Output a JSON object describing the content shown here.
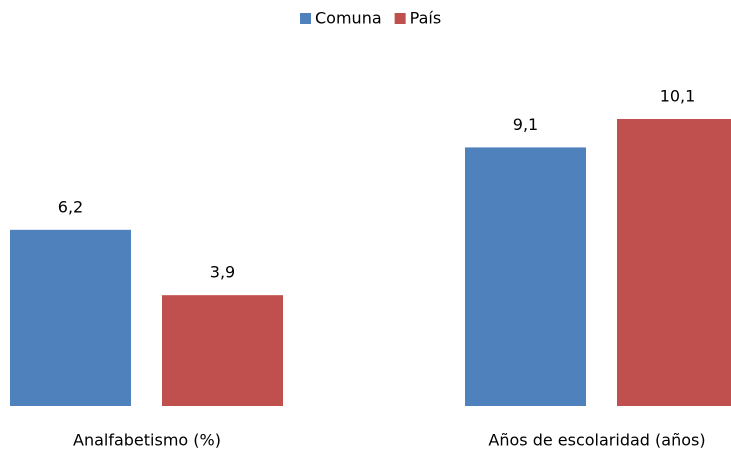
{
  "chart_data": {
    "type": "bar",
    "categories": [
      "Analfabetismo (%)",
      "Años de escolaridad (años)"
    ],
    "series": [
      {
        "name": "Comuna",
        "color": "#4f81bd",
        "values": [
          6.2,
          9.1
        ],
        "value_labels": [
          "6,2",
          "9,1"
        ]
      },
      {
        "name": "País",
        "color": "#c0504d",
        "values": [
          3.9,
          10.1
        ],
        "value_labels": [
          "3,9",
          "10,1"
        ]
      }
    ],
    "legend": "top"
  }
}
